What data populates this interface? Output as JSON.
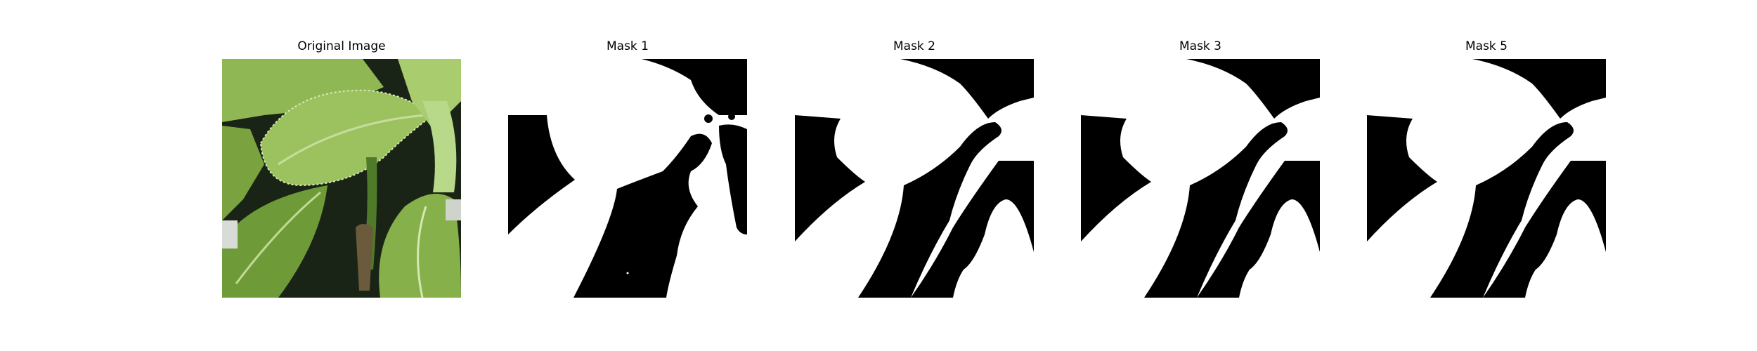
{
  "figure": {
    "panels": [
      {
        "title": "Original Image",
        "kind": "photo"
      },
      {
        "title": "Mask 1",
        "kind": "mask"
      },
      {
        "title": "Mask 2",
        "kind": "mask"
      },
      {
        "title": "Mask 3",
        "kind": "mask"
      },
      {
        "title": "Mask 5",
        "kind": "mask"
      }
    ]
  },
  "colors": {
    "mask_foreground": "#ffffff",
    "mask_background": "#000000",
    "leaf_light": "#a6c86a",
    "leaf_mid": "#86b04a",
    "leaf_dark": "#4f7a2a",
    "shadow": "#1a2416"
  }
}
